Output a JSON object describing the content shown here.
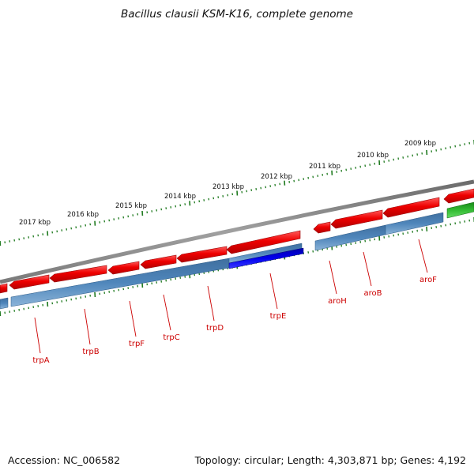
{
  "title": "Bacillus clausii KSM-K16, complete genome",
  "footer": {
    "accession": "Accession: NC_006582",
    "topology": "Topology: circular; Length: 4,303,871 bp; Genes: 4,192"
  },
  "colors": {
    "backbone": "#8c8c8c",
    "forward_cds": "#e80000",
    "reverse_cds": "#4b7fb3",
    "highlight": "#0000dd",
    "other_feature": "#22aa22",
    "tick": "#1f7a1f",
    "gene_label": "#cc0000",
    "scale_label": "#111111"
  },
  "scale_labels": [
    "2009 kbp",
    "2010 kbp",
    "2011 kbp",
    "2012 kbp",
    "2013 kbp",
    "2014 kbp",
    "2015 kbp",
    "2016 kbp",
    "2017 kbp"
  ],
  "genes": [
    {
      "label": "aroF"
    },
    {
      "label": "aroB"
    },
    {
      "label": "aroH"
    },
    {
      "label": "trpE"
    },
    {
      "label": "trpD"
    },
    {
      "label": "trpC"
    },
    {
      "label": "trpF"
    },
    {
      "label": "trpB"
    },
    {
      "label": "trpA"
    }
  ]
}
